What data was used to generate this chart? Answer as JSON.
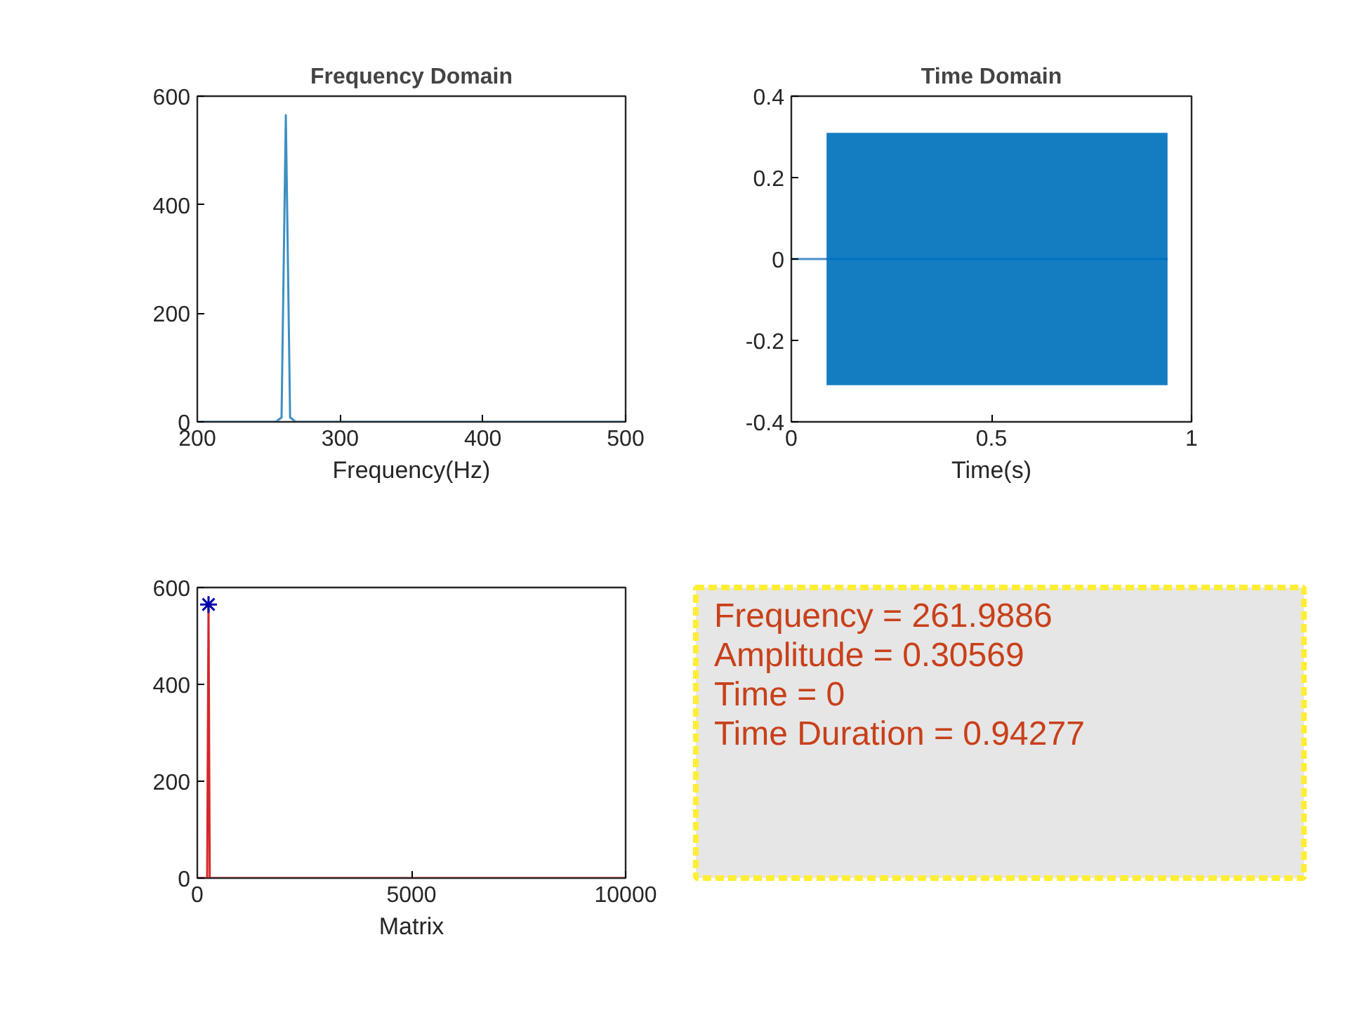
{
  "chart_data": [
    {
      "type": "line",
      "title": "Frequency Domain",
      "xlabel": "Frequency(Hz)",
      "xlim": [
        200,
        500
      ],
      "xticks": [
        200,
        300,
        400,
        500
      ],
      "ylim": [
        0,
        600
      ],
      "yticks": [
        0,
        200,
        400,
        600
      ],
      "series": [
        {
          "color": "#3d8fc2",
          "x": [
            200,
            255,
            259,
            262,
            265,
            269,
            500
          ],
          "values": [
            0,
            0,
            8,
            565,
            8,
            0,
            0
          ]
        }
      ]
    },
    {
      "type": "line",
      "title": "Time Domain",
      "xlabel": "Time(s)",
      "xlim": [
        0,
        1
      ],
      "xticks": [
        0,
        0.5,
        1
      ],
      "ylim": [
        -0.4,
        0.4
      ],
      "yticks": [
        -0.4,
        -0.2,
        0,
        0.2,
        0.4
      ],
      "series": [
        {
          "color": "#4a90c8",
          "x": [
            0,
            0.088
          ],
          "values": [
            0,
            0
          ]
        },
        {
          "color": "#0072bd",
          "x": [
            0.088,
            0.94
          ],
          "values": [
            0,
            0
          ],
          "lower": [
            -0.31,
            -0.31
          ],
          "upper": [
            0.31,
            0.31
          ]
        }
      ]
    },
    {
      "type": "line",
      "xlabel": "Matrix",
      "xlim": [
        0,
        10000
      ],
      "xticks": [
        0,
        5000,
        10000
      ],
      "ylim": [
        0,
        600
      ],
      "yticks": [
        0,
        200,
        400,
        600
      ],
      "series": [
        {
          "color": "#d62728",
          "x": [
            0,
            230,
            262,
            290,
            10000
          ],
          "values": [
            0,
            0,
            565,
            0,
            0
          ]
        },
        {
          "type": "scatter",
          "marker": "cross",
          "color": "#0000aa",
          "x": [
            262
          ],
          "values": [
            565
          ]
        }
      ]
    },
    {
      "type": "other",
      "annotations": [
        "Frequency = 261.9886",
        "Amplitude = 0.30569",
        "Time = 0",
        "Time Duration = 0.94277"
      ]
    }
  ]
}
